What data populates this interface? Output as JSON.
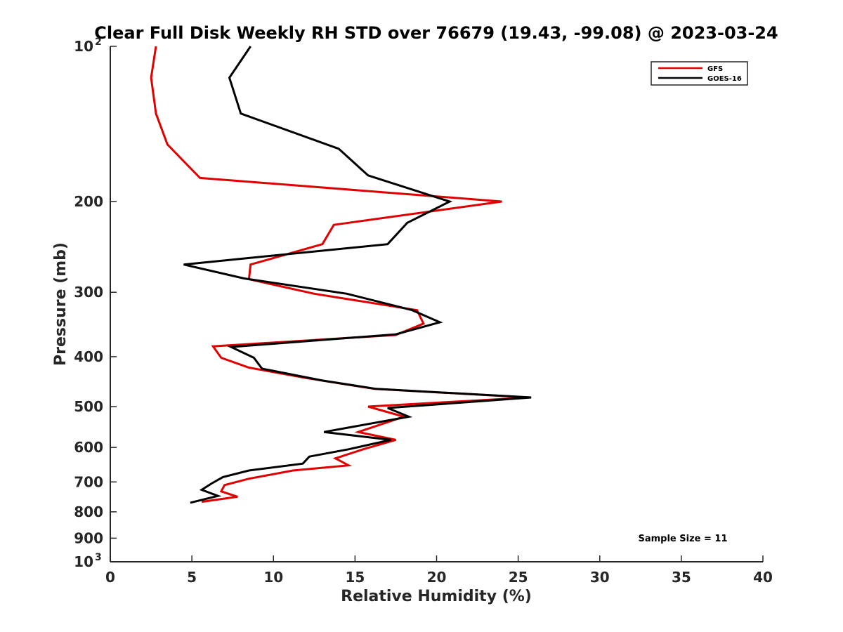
{
  "chart_data": {
    "type": "line",
    "title": "Clear Full Disk Weekly RH STD over 76679 (19.43, -99.08) @ 2023-03-24",
    "xlabel": "Relative Humidity (%)",
    "ylabel": "Pressure (mb)",
    "xlim": [
      0,
      40
    ],
    "ylim": [
      100,
      1000
    ],
    "yscale": "log",
    "y_reversed": true,
    "grid": false,
    "legend_position": "top-right",
    "x_ticks": [
      0,
      5,
      10,
      15,
      20,
      25,
      30,
      35,
      40
    ],
    "y_ticks": [
      {
        "value": 100,
        "label": "10",
        "sup": "2"
      },
      {
        "value": 200,
        "label": "200"
      },
      {
        "value": 300,
        "label": "300"
      },
      {
        "value": 400,
        "label": "400"
      },
      {
        "value": 500,
        "label": "500"
      },
      {
        "value": 600,
        "label": "600"
      },
      {
        "value": 700,
        "label": "700"
      },
      {
        "value": 800,
        "label": "800"
      },
      {
        "value": 900,
        "label": "900"
      },
      {
        "value": 1000,
        "label": "10",
        "sup": "3"
      }
    ],
    "annotation": "Sample Size = 11",
    "series": [
      {
        "name": "GFS",
        "color": "#e00000",
        "points": [
          {
            "x": 2.8,
            "p": 100
          },
          {
            "x": 2.5,
            "p": 115
          },
          {
            "x": 2.8,
            "p": 135
          },
          {
            "x": 3.5,
            "p": 155
          },
          {
            "x": 5.5,
            "p": 180
          },
          {
            "x": 24.0,
            "p": 200
          },
          {
            "x": 13.7,
            "p": 222
          },
          {
            "x": 13.0,
            "p": 242
          },
          {
            "x": 8.6,
            "p": 265
          },
          {
            "x": 8.5,
            "p": 283
          },
          {
            "x": 12.5,
            "p": 302
          },
          {
            "x": 18.8,
            "p": 325
          },
          {
            "x": 19.2,
            "p": 345
          },
          {
            "x": 17.5,
            "p": 363
          },
          {
            "x": 6.3,
            "p": 382
          },
          {
            "x": 6.8,
            "p": 402
          },
          {
            "x": 8.5,
            "p": 420
          },
          {
            "x": 12.0,
            "p": 440
          },
          {
            "x": 16.2,
            "p": 462
          },
          {
            "x": 25.7,
            "p": 480
          },
          {
            "x": 15.8,
            "p": 500
          },
          {
            "x": 18.0,
            "p": 523
          },
          {
            "x": 15.2,
            "p": 560
          },
          {
            "x": 17.5,
            "p": 580
          },
          {
            "x": 15.5,
            "p": 605
          },
          {
            "x": 13.8,
            "p": 630
          },
          {
            "x": 14.6,
            "p": 650
          },
          {
            "x": 11.2,
            "p": 665
          },
          {
            "x": 8.5,
            "p": 690
          },
          {
            "x": 7.0,
            "p": 710
          },
          {
            "x": 6.8,
            "p": 730
          },
          {
            "x": 7.8,
            "p": 748
          },
          {
            "x": 5.6,
            "p": 765
          }
        ]
      },
      {
        "name": "GOES-16",
        "color": "#000000",
        "points": [
          {
            "x": 8.6,
            "p": 100
          },
          {
            "x": 7.3,
            "p": 115
          },
          {
            "x": 8.0,
            "p": 135
          },
          {
            "x": 14.0,
            "p": 158
          },
          {
            "x": 15.8,
            "p": 178
          },
          {
            "x": 20.8,
            "p": 200
          },
          {
            "x": 18.2,
            "p": 220
          },
          {
            "x": 17.0,
            "p": 242
          },
          {
            "x": 4.5,
            "p": 265
          },
          {
            "x": 8.2,
            "p": 282
          },
          {
            "x": 14.5,
            "p": 302
          },
          {
            "x": 18.5,
            "p": 325
          },
          {
            "x": 20.2,
            "p": 343
          },
          {
            "x": 17.5,
            "p": 362
          },
          {
            "x": 7.4,
            "p": 383
          },
          {
            "x": 8.8,
            "p": 402
          },
          {
            "x": 9.3,
            "p": 422
          },
          {
            "x": 13.0,
            "p": 445
          },
          {
            "x": 16.3,
            "p": 462
          },
          {
            "x": 25.8,
            "p": 480
          },
          {
            "x": 17.0,
            "p": 503
          },
          {
            "x": 18.3,
            "p": 523
          },
          {
            "x": 13.1,
            "p": 560
          },
          {
            "x": 17.2,
            "p": 580
          },
          {
            "x": 14.6,
            "p": 605
          },
          {
            "x": 12.2,
            "p": 625
          },
          {
            "x": 11.8,
            "p": 645
          },
          {
            "x": 8.5,
            "p": 665
          },
          {
            "x": 6.9,
            "p": 685
          },
          {
            "x": 6.2,
            "p": 705
          },
          {
            "x": 5.6,
            "p": 725
          },
          {
            "x": 6.6,
            "p": 745
          },
          {
            "x": 4.9,
            "p": 768
          }
        ]
      }
    ]
  }
}
